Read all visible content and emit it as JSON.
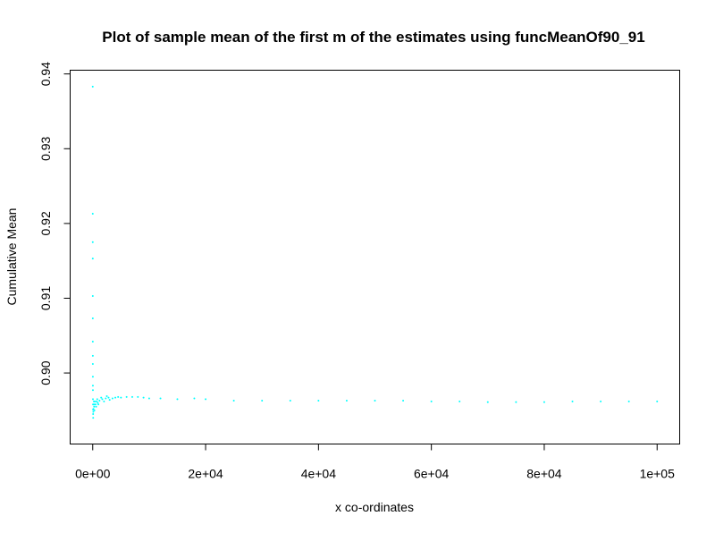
{
  "chart_data": {
    "type": "scatter",
    "title": "Plot of sample mean of the first m of the estimates using funcMeanOf90_91",
    "xlabel": "x co-ordinates",
    "ylabel": "Cumulative Mean",
    "xlim": [
      -4000,
      104000
    ],
    "ylim": [
      0.8905,
      0.9405
    ],
    "x_ticks": [
      {
        "value": 0,
        "label": "0e+00"
      },
      {
        "value": 20000,
        "label": "2e+04"
      },
      {
        "value": 40000,
        "label": "4e+04"
      },
      {
        "value": 60000,
        "label": "6e+04"
      },
      {
        "value": 80000,
        "label": "8e+04"
      },
      {
        "value": 100000,
        "label": "1e+05"
      }
    ],
    "y_ticks": [
      {
        "value": 0.9,
        "label": "0.90"
      },
      {
        "value": 0.91,
        "label": "0.91"
      },
      {
        "value": 0.92,
        "label": "0.92"
      },
      {
        "value": 0.93,
        "label": "0.93"
      },
      {
        "value": 0.94,
        "label": "0.94"
      }
    ],
    "point_color": "#00FFFF",
    "grid": false,
    "series": [
      {
        "x": [
          1,
          3,
          5,
          8,
          10,
          12,
          15,
          18,
          20,
          25,
          30,
          35,
          40,
          50,
          60,
          70,
          80,
          100,
          120,
          150,
          200,
          250,
          300,
          350,
          400,
          500,
          600,
          700,
          800,
          900,
          1000,
          1200,
          1500,
          1700,
          2000,
          2300,
          2500,
          2800,
          3000,
          3500,
          4000,
          4500,
          5000,
          6000,
          7000,
          8000,
          9000,
          10000,
          12000,
          15000,
          18000,
          20000,
          25000,
          30000,
          35000,
          40000,
          45000,
          50000,
          55000,
          60000,
          65000,
          70000,
          75000,
          80000,
          85000,
          90000,
          95000,
          100000
        ],
        "y": [
          0.9383,
          0.9213,
          0.9175,
          0.9153,
          0.9103,
          0.9073,
          0.9042,
          0.9023,
          0.9012,
          0.8995,
          0.8983,
          0.8977,
          0.8965,
          0.8958,
          0.8951,
          0.8945,
          0.894,
          0.8948,
          0.8952,
          0.8958,
          0.8962,
          0.8955,
          0.895,
          0.8958,
          0.8962,
          0.8958,
          0.8955,
          0.8962,
          0.8965,
          0.896,
          0.8958,
          0.8963,
          0.8967,
          0.8965,
          0.8962,
          0.8966,
          0.8969,
          0.8967,
          0.8964,
          0.8966,
          0.8967,
          0.8968,
          0.8967,
          0.8968,
          0.8968,
          0.8968,
          0.8967,
          0.8966,
          0.8966,
          0.8965,
          0.8966,
          0.8965,
          0.8963,
          0.8963,
          0.8963,
          0.8963,
          0.8963,
          0.8963,
          0.8963,
          0.8962,
          0.8962,
          0.8961,
          0.8961,
          0.8961,
          0.8962,
          0.8962,
          0.8962,
          0.8962
        ]
      }
    ]
  }
}
